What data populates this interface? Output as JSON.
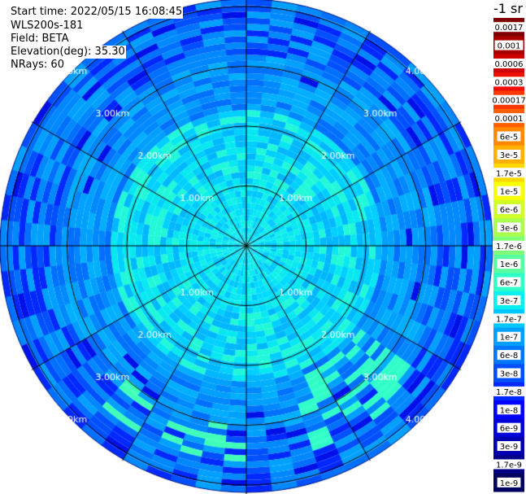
{
  "header": {
    "start_time": "Start time: 2022/05/15 16:08:45",
    "device": "WLS200s-181",
    "field": "Field: BETA",
    "elevation": "Elevation(deg): 35.30",
    "nrays": "NRays: 60"
  },
  "colorbar": {
    "unit": "-1 sr",
    "labels": [
      "0.0017",
      "0.001",
      "0.0006",
      "0.0003",
      "0.00017",
      "0.0001",
      "6e-5",
      "3e-5",
      "1.7e-5",
      "1e-5",
      "6e-6",
      "3e-6",
      "1.7e-6",
      "1e-6",
      "6e-7",
      "3e-7",
      "1.7e-7",
      "1e-7",
      "6e-8",
      "3e-8",
      "1.7e-8",
      "1e-8",
      "6e-9",
      "3e-9",
      "1.7e-9",
      "1e-9"
    ],
    "colors": [
      "#800000",
      "#a80000",
      "#d00000",
      "#f01000",
      "#ff3800",
      "#ff6000",
      "#ff8800",
      "#ffb000",
      "#ffd800",
      "#f8ff00",
      "#d0ff28",
      "#a8ff50",
      "#80ff78",
      "#58ffa0",
      "#30ffc8",
      "#08f0f0",
      "#00c8ff",
      "#00a0ff",
      "#0078ff",
      "#0050ff",
      "#0028ff",
      "#0000ff",
      "#0000d8",
      "#0000b0",
      "#000088",
      "#000060"
    ]
  },
  "chart_data": {
    "type": "heatmap",
    "projection": "polar PPI",
    "n_rays": 60,
    "range_rings_km": [
      1.0,
      2.0,
      3.0,
      4.0
    ],
    "ring_labels": [
      "1.00km",
      "2.00km",
      "3.00km",
      "4.00km"
    ],
    "spoke_angles_deg": [
      0,
      30,
      60,
      90,
      120,
      150,
      180,
      210,
      240,
      270,
      300,
      330
    ],
    "max_range_km": 4.1,
    "dominant_values": {
      "near_range_lt_1km": "1e-7",
      "ring_1_to_2km": "1.7e-7",
      "ring_2_to_3km": "6e-8",
      "beyond_3km": "3e-8",
      "southeast_patch": "3e-7"
    }
  }
}
